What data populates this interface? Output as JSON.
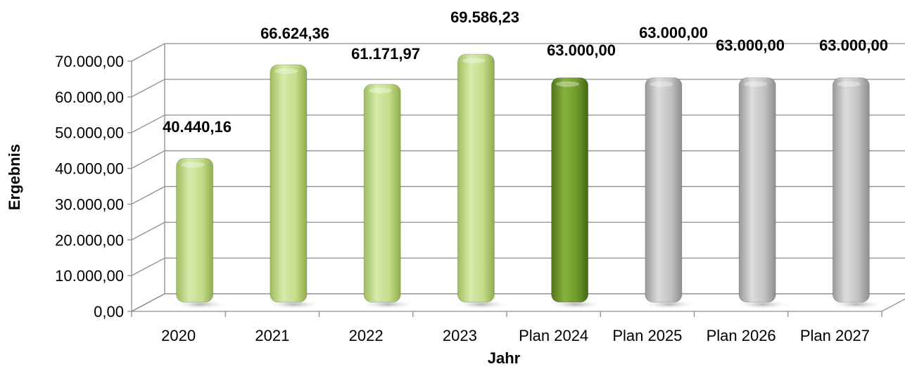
{
  "chart_data": {
    "type": "bar",
    "title": "",
    "xlabel": "Jahr",
    "ylabel": "Ergebnis",
    "categories": [
      "2020",
      "2021",
      "2022",
      "2023",
      "Plan 2024",
      "Plan 2025",
      "Plan 2026",
      "Plan 2027"
    ],
    "values": [
      40440.16,
      66624.36,
      61171.97,
      69586.23,
      63000.0,
      63000.0,
      63000.0,
      63000.0
    ],
    "value_labels": [
      "40.440,16",
      "66.624,36",
      "61.171,97",
      "69.586,23",
      "63.000,00",
      "63.000,00",
      "63.000,00",
      "63.000,00"
    ],
    "bar_styles": [
      "actual",
      "actual",
      "actual",
      "actual",
      "current_plan",
      "future_plan",
      "future_plan",
      "future_plan"
    ],
    "ylim": [
      0,
      70000
    ],
    "yticks": [
      0,
      10000,
      20000,
      30000,
      40000,
      50000,
      60000,
      70000
    ],
    "ytick_labels": [
      "0,00",
      "10.000,00",
      "20.000,00",
      "30.000,00",
      "40.000,00",
      "50.000,00",
      "60.000,00",
      "70.000,00"
    ],
    "grid": true,
    "legend": false,
    "colors": {
      "actual": "#c3dc8a",
      "current_plan": "#6e9a2c",
      "future_plan": "#bdbdbd",
      "grid": "#8c8c8c"
    }
  }
}
